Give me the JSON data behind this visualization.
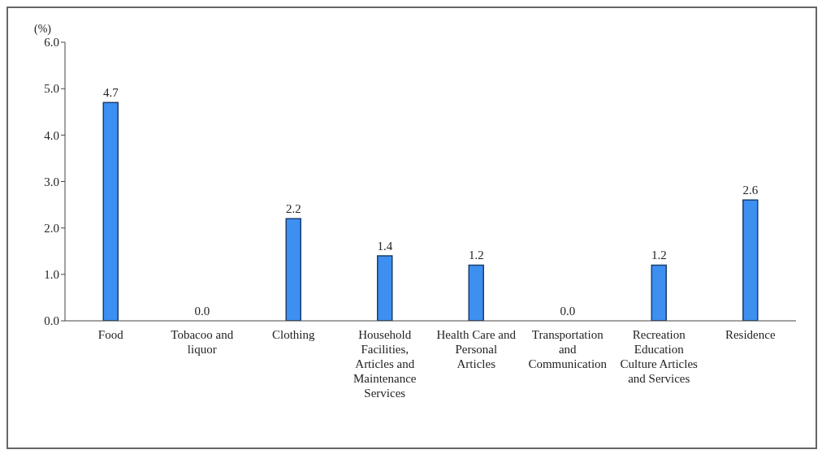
{
  "chart_data": {
    "type": "bar",
    "ylabel": "(%)",
    "categories": [
      "Food",
      "Tobacoo and liquor",
      "Clothing",
      "Household Facilities, Articles and Maintenance Services",
      "Health Care and Personal Articles",
      "Transportation and Communication",
      "Recreation Education Culture Articles and Services",
      "Residence"
    ],
    "values": [
      4.7,
      0.0,
      2.2,
      1.4,
      1.2,
      0.0,
      1.2,
      2.6
    ],
    "value_labels": [
      "4.7",
      "0.0",
      "2.2",
      "1.4",
      "1.2",
      "0.0",
      "1.2",
      "2.6"
    ],
    "color": "#3d8ff0",
    "ylim": [
      0,
      6
    ],
    "yticks": [
      {
        "value": 0,
        "label": "0.0"
      },
      {
        "value": 1,
        "label": "1.0"
      },
      {
        "value": 2,
        "label": "2.0"
      },
      {
        "value": 3,
        "label": "3.0"
      },
      {
        "value": 4,
        "label": "4.0"
      },
      {
        "value": 5,
        "label": "5.0"
      },
      {
        "value": 6,
        "label": "6.0"
      }
    ],
    "grid": false,
    "legend": false
  }
}
